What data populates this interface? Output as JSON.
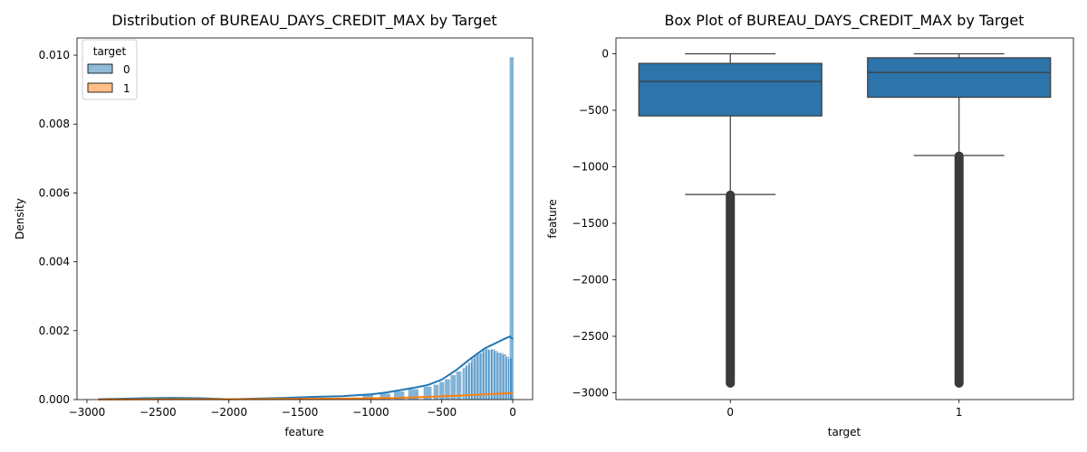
{
  "chart_data": [
    {
      "type": "histogram",
      "title": "Distribution of BUREAU_DAYS_CREDIT_MAX by Target",
      "xlabel": "feature",
      "ylabel": "Density",
      "xlim": [
        -3070,
        140
      ],
      "ylim": [
        0,
        0.0105
      ],
      "xticks": [
        -3000,
        -2500,
        -2000,
        -1500,
        -1000,
        -500,
        0
      ],
      "xtick_labels": [
        "−3000",
        "−2500",
        "−2000",
        "−1500",
        "−1000",
        "−500",
        "0"
      ],
      "yticks": [
        0,
        0.002,
        0.004,
        0.006,
        0.008,
        0.01
      ],
      "ytick_labels": [
        "0.000",
        "0.002",
        "0.004",
        "0.006",
        "0.008",
        "0.010"
      ],
      "grid": false,
      "legend": {
        "title": "target",
        "placement": "top-left",
        "entries": [
          "0",
          "1"
        ]
      },
      "colors": {
        "0": "#1f77b4",
        "1": "#ff7f0e"
      },
      "series": [
        {
          "name": "0",
          "kde_x": [
            -2920,
            -2800,
            -2600,
            -2400,
            -2200,
            -2000,
            -1800,
            -1600,
            -1400,
            -1200,
            -1000,
            -900,
            -800,
            -700,
            -600,
            -500,
            -400,
            -300,
            -200,
            -100,
            -50,
            -20,
            0
          ],
          "kde_y": [
            1e-05,
            2e-05,
            4e-05,
            5e-05,
            4e-05,
            1e-05,
            3e-05,
            5e-05,
            8e-05,
            0.0001,
            0.00015,
            0.0002,
            0.00027,
            0.00034,
            0.00042,
            0.00058,
            0.00085,
            0.00118,
            0.00148,
            0.00168,
            0.00178,
            0.00183,
            0.00176
          ],
          "bins_x": [
            -1020,
            -900,
            -800,
            -700,
            -600,
            -540,
            -500,
            -460,
            -420,
            -380,
            -340,
            -320,
            -300,
            -280,
            -260,
            -240,
            -220,
            -200,
            -180,
            -160,
            -140,
            -120,
            -100,
            -80,
            -60,
            -40,
            -20,
            -8
          ],
          "bins_y": [
            0.00014,
            0.00018,
            0.00024,
            0.00031,
            0.00038,
            0.00044,
            0.00052,
            0.0006,
            0.00072,
            0.00082,
            0.00092,
            0.001,
            0.00108,
            0.0012,
            0.00128,
            0.00133,
            0.00136,
            0.00145,
            0.00148,
            0.00145,
            0.00147,
            0.00142,
            0.00138,
            0.00136,
            0.00132,
            0.00125,
            0.0012,
            0.00995
          ]
        },
        {
          "name": "1",
          "kde_x": [
            -2920,
            -2500,
            -2000,
            -1500,
            -1200,
            -1000,
            -800,
            -600,
            -400,
            -300,
            -200,
            -100,
            -50,
            0
          ],
          "kde_y": [
            0.0,
            1e-05,
            1e-05,
            2e-05,
            3e-05,
            4e-05,
            5e-05,
            8e-05,
            0.00011,
            0.00013,
            0.00015,
            0.00017,
            0.00018,
            0.00018
          ]
        }
      ]
    },
    {
      "type": "box",
      "title": "Box Plot of BUREAU_DAYS_CREDIT_MAX by Target",
      "xlabel": "target",
      "ylabel": "feature",
      "categories": [
        "0",
        "1"
      ],
      "ylim": [
        -3060,
        140
      ],
      "yticks": [
        0,
        -500,
        -1000,
        -1500,
        -2000,
        -2500,
        -3000
      ],
      "ytick_labels": [
        "0",
        "−500",
        "−1000",
        "−1500",
        "−2000",
        "−2500",
        "−3000"
      ],
      "grid": false,
      "color": "#2c74aa",
      "boxes": [
        {
          "category": "0",
          "q1": -550,
          "median": -245,
          "q3": -85,
          "whisker_low": -1245,
          "whisker_high": 0,
          "outliers_from": -1250,
          "outliers_to": -2915
        },
        {
          "category": "1",
          "q1": -385,
          "median": -165,
          "q3": -35,
          "whisker_low": -900,
          "whisker_high": 0,
          "outliers_from": -905,
          "outliers_to": -2915
        }
      ]
    }
  ]
}
